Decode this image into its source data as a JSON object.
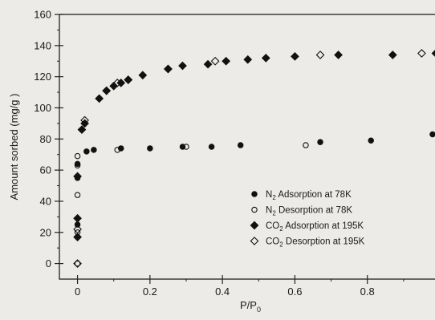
{
  "chart_data": {
    "type": "scatter",
    "xlabel_main": "P/P",
    "xlabel_sub": "0",
    "ylabel": "Amount sorbed (mg/g )",
    "xlim": [
      -0.05,
      1.0
    ],
    "ylim": [
      -10,
      160
    ],
    "xticks": [
      0,
      0.2,
      0.4,
      0.6,
      0.8
    ],
    "xtick_labels": [
      "0",
      "0.2",
      "0.4",
      "0.6",
      "0.8"
    ],
    "yticks": [
      0,
      20,
      40,
      60,
      80,
      100,
      120,
      140,
      160
    ],
    "ytick_labels": [
      "0",
      "20",
      "40",
      "60",
      "80",
      "100",
      "120",
      "140",
      "160"
    ],
    "grid": false,
    "legend_position": "bottom-right",
    "series": [
      {
        "legend": {
          "pre": "N",
          "sub": "2",
          "post": " Adsorption at 78K"
        },
        "marker": "filled-circle",
        "x": [
          0.0,
          0.0,
          0.0,
          0.0,
          0.025,
          0.045,
          0.12,
          0.2,
          0.29,
          0.37,
          0.45,
          0.67,
          0.81,
          0.98
        ],
        "y": [
          17,
          25,
          55,
          64,
          72,
          73,
          74,
          74,
          75,
          75,
          76,
          78,
          79,
          83
        ]
      },
      {
        "legend": {
          "pre": "N",
          "sub": "2",
          "post": " Desorption at 78K"
        },
        "marker": "open-circle",
        "x": [
          0.0,
          0.0,
          0.0,
          0.0,
          0.0,
          0.11,
          0.3,
          0.63
        ],
        "y": [
          0,
          20,
          44,
          63,
          69,
          73,
          75,
          76
        ]
      },
      {
        "legend": {
          "pre": "CO",
          "sub": "2",
          "post": " Adsorption at 195K"
        },
        "marker": "filled-diamond",
        "x": [
          0.0,
          0.0,
          0.0,
          0.012,
          0.02,
          0.06,
          0.08,
          0.1,
          0.12,
          0.14,
          0.18,
          0.25,
          0.29,
          0.36,
          0.41,
          0.47,
          0.52,
          0.6,
          0.72,
          0.87,
          0.99
        ],
        "y": [
          17,
          29,
          56,
          86,
          90,
          106,
          111,
          114,
          116,
          118,
          121,
          125,
          127,
          128,
          130,
          131,
          132,
          133,
          134,
          134,
          135
        ]
      },
      {
        "legend": {
          "pre": "CO",
          "sub": "2",
          "post": " Desorption at 195K"
        },
        "marker": "open-diamond",
        "x": [
          0.0,
          0.0,
          0.02,
          0.08,
          0.11,
          0.14,
          0.25,
          0.38,
          0.67,
          0.95
        ],
        "y": [
          0,
          22,
          92,
          111,
          116,
          118,
          125,
          130,
          134,
          135
        ]
      }
    ]
  }
}
